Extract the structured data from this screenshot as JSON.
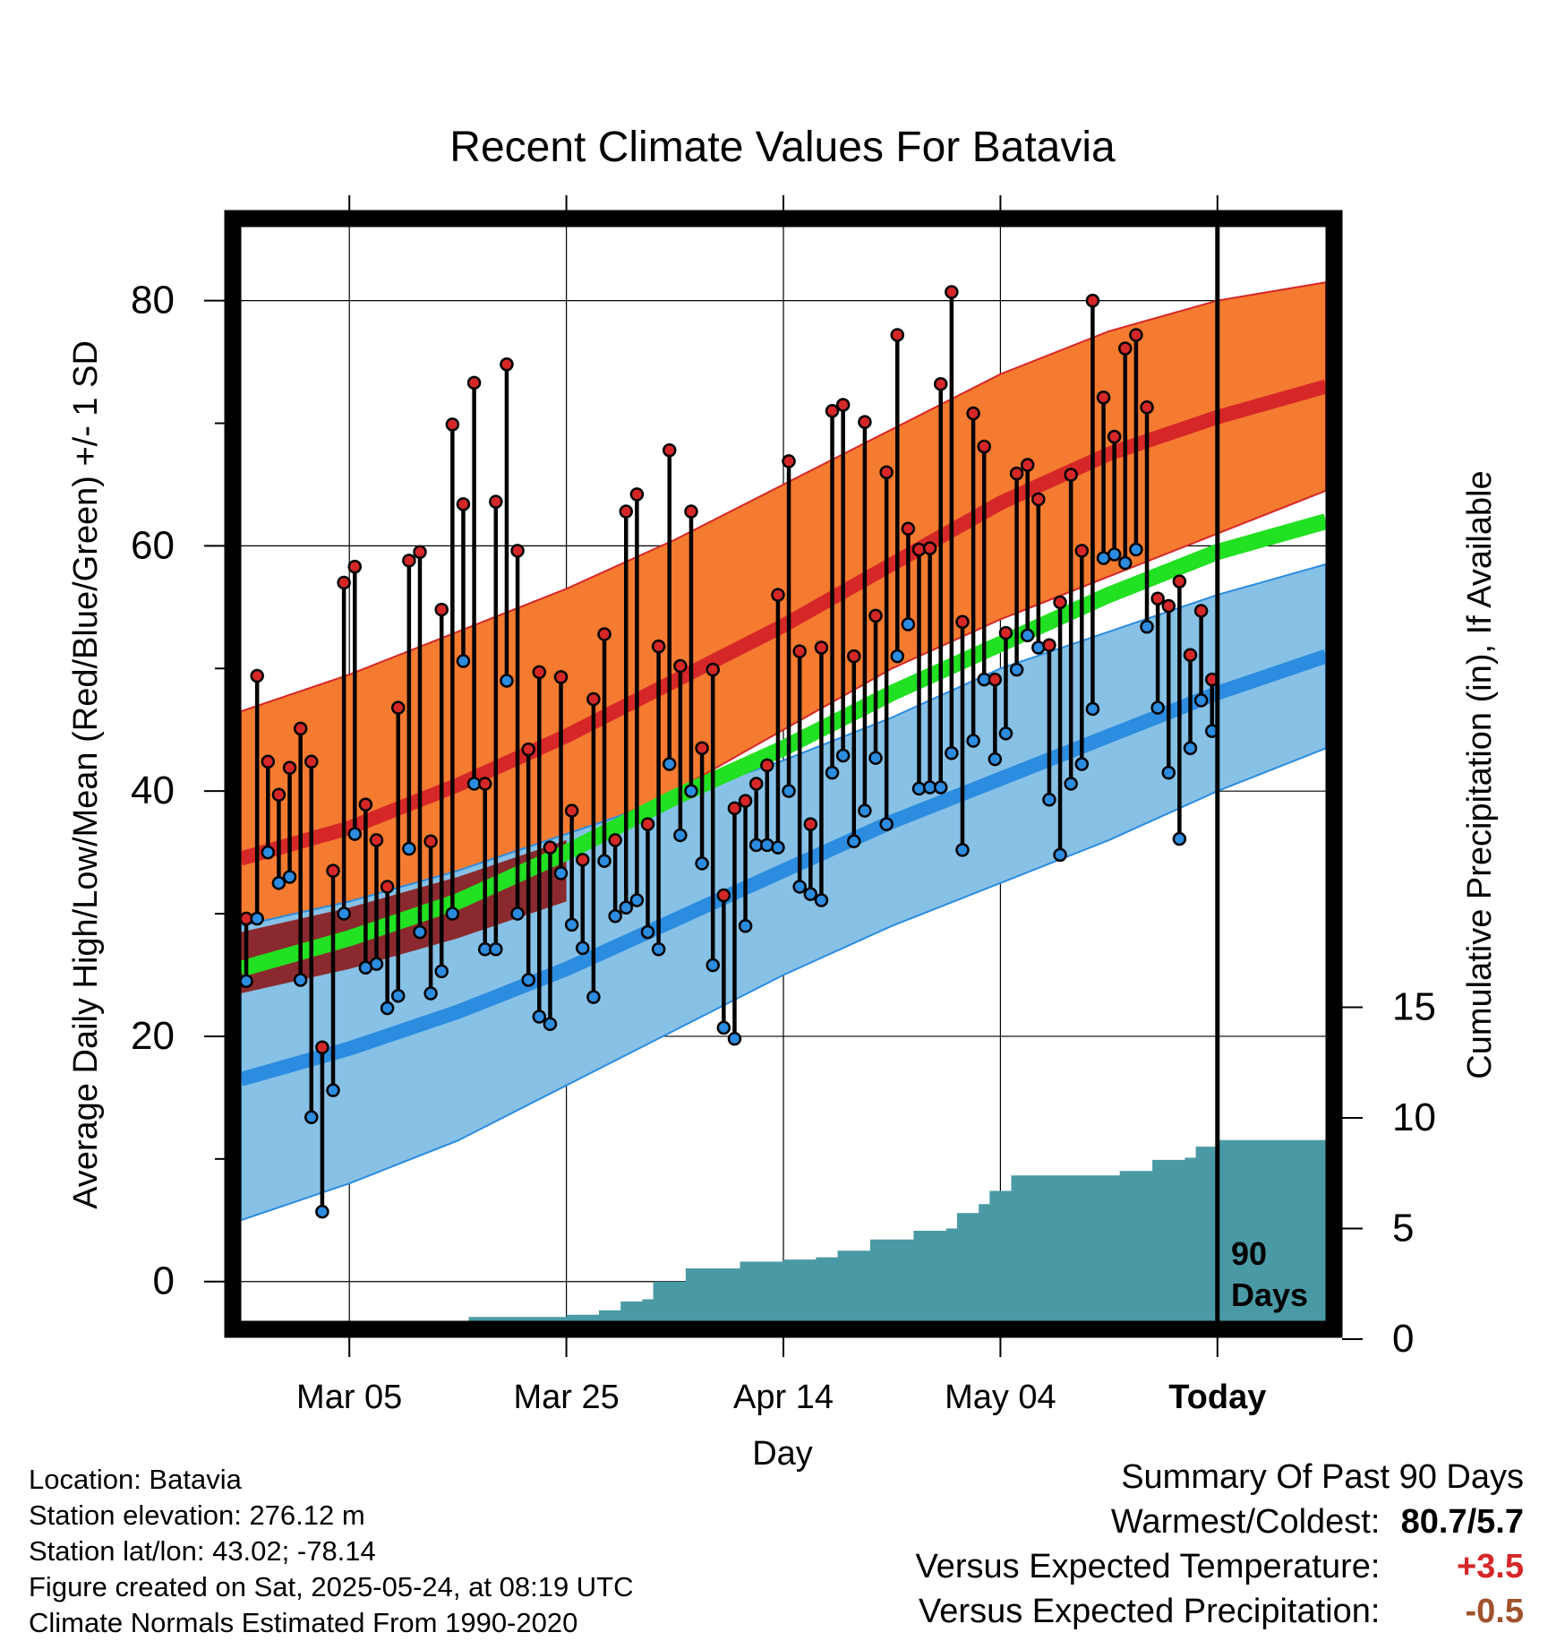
{
  "chart_data": {
    "type": "line",
    "title": "Recent Climate Values For Batavia",
    "xlabel": "Day",
    "ylabel": "Average Daily High/Low/Mean (Red/Blue/Green) +/- 1 SD",
    "y2label": "Cumulative Precipitation (in), If Available",
    "ylim": [
      -3.6,
      86.4
    ],
    "y2lim": [
      0,
      19
    ],
    "yticks": [
      0,
      20,
      40,
      60,
      80
    ],
    "y2ticks": [
      0,
      5,
      10,
      15
    ],
    "x_start": "2025-02-23",
    "x_end": "2025-06-03",
    "xticks": [
      {
        "date": "2025-03-05",
        "label": "Mar 05"
      },
      {
        "date": "2025-03-25",
        "label": "Mar 25"
      },
      {
        "date": "2025-04-14",
        "label": "Apr 14"
      },
      {
        "date": "2025-05-04",
        "label": "May 04"
      },
      {
        "date": "2025-05-24",
        "label": "Today"
      }
    ],
    "today": "2025-05-24",
    "today_label": "90 Days",
    "grid": true,
    "normals": {
      "dates": [
        "2025-02-23",
        "2025-03-05",
        "2025-03-15",
        "2025-03-25",
        "2025-04-04",
        "2025-04-14",
        "2025-04-24",
        "2025-05-04",
        "2025-05-14",
        "2025-05-24",
        "2025-06-03"
      ],
      "high_mean": [
        34.5,
        37.0,
        40.5,
        44.5,
        49.0,
        53.5,
        58.5,
        63.5,
        67.5,
        70.5,
        73.0
      ],
      "high_upper": [
        46.5,
        49.5,
        53.0,
        56.5,
        60.5,
        65.0,
        69.5,
        74.0,
        77.5,
        80.0,
        81.5
      ],
      "high_lower": [
        28.5,
        30.5,
        33.0,
        36.0,
        40.0,
        45.0,
        50.0,
        54.0,
        57.5,
        61.0,
        64.5
      ],
      "low_mean": [
        16.5,
        19.0,
        22.0,
        25.5,
        29.5,
        33.5,
        37.5,
        41.0,
        44.5,
        48.0,
        51.0
      ],
      "low_upper": [
        29.0,
        31.0,
        33.5,
        36.5,
        39.5,
        42.5,
        46.0,
        50.0,
        53.0,
        56.0,
        58.5
      ],
      "low_lower": [
        5.0,
        8.0,
        11.5,
        16.0,
        20.5,
        25.0,
        29.0,
        32.5,
        36.0,
        40.0,
        43.5
      ],
      "mean": [
        25.5,
        28.0,
        31.0,
        35.0,
        39.5,
        43.5,
        48.0,
        52.0,
        56.0,
        59.5,
        62.0
      ]
    },
    "series": [
      {
        "name": "High",
        "color": "#d62728",
        "values": [
          29.6,
          49.4,
          42.4,
          39.7,
          41.9,
          45.1,
          42.4,
          19.1,
          33.5,
          57.0,
          58.3,
          38.9,
          36.0,
          32.2,
          46.8,
          58.8,
          59.5,
          35.9,
          54.8,
          69.9,
          63.4,
          73.3,
          40.6,
          63.6,
          74.8,
          59.6,
          43.4,
          49.7,
          35.4,
          49.3,
          38.4,
          34.4,
          47.5,
          52.8,
          36.0,
          62.8,
          64.2,
          37.3,
          51.8,
          67.8,
          50.2,
          62.8,
          43.5,
          49.9,
          31.5,
          38.6,
          39.2,
          40.6,
          42.1,
          56.0,
          66.9,
          51.4,
          37.3,
          51.7,
          71.0,
          71.5,
          51.0,
          70.1,
          54.3,
          66.0,
          77.2,
          61.4,
          59.7,
          59.8,
          73.2,
          80.7,
          53.8,
          70.8,
          68.1,
          49.1,
          52.9,
          65.9,
          66.6,
          63.8,
          51.9,
          55.4,
          65.8,
          59.6,
          80.0,
          72.1,
          68.9,
          76.1,
          77.2,
          71.3,
          55.7,
          55.1,
          57.1,
          51.1,
          54.7,
          49.1
        ]
      },
      {
        "name": "Low",
        "color": "#2b8ce0",
        "values": [
          24.5,
          29.6,
          35.0,
          32.5,
          33.0,
          24.6,
          13.4,
          5.7,
          15.6,
          30.0,
          36.5,
          25.6,
          25.9,
          22.3,
          23.3,
          35.3,
          28.5,
          23.5,
          25.3,
          30.0,
          50.6,
          40.6,
          27.1,
          27.1,
          49.0,
          30.0,
          24.6,
          21.6,
          21.0,
          33.3,
          29.1,
          27.2,
          23.2,
          34.3,
          29.8,
          30.5,
          31.1,
          28.5,
          27.1,
          42.2,
          36.4,
          40.0,
          34.1,
          25.8,
          20.7,
          19.8,
          29.0,
          35.6,
          35.6,
          35.4,
          40.0,
          32.2,
          31.6,
          31.1,
          41.5,
          42.9,
          35.9,
          38.4,
          42.7,
          37.3,
          51.0,
          53.6,
          40.2,
          40.3,
          40.3,
          43.1,
          35.2,
          44.1,
          49.1,
          42.6,
          44.7,
          49.9,
          52.7,
          51.7,
          39.3,
          34.8,
          40.6,
          42.2,
          46.7,
          59.0,
          59.3,
          58.6,
          59.7,
          53.4,
          46.8,
          41.5,
          36.1,
          43.5,
          47.4,
          44.9
        ]
      }
    ],
    "precip": {
      "dates": [
        "2025-02-23",
        "2025-03-05",
        "2025-03-15",
        "2025-03-16",
        "2025-03-25",
        "2025-03-28",
        "2025-03-30",
        "2025-04-01",
        "2025-04-02",
        "2025-04-05",
        "2025-04-10",
        "2025-04-14",
        "2025-04-17",
        "2025-04-19",
        "2025-04-22",
        "2025-04-26",
        "2025-04-29",
        "2025-04-30",
        "2025-05-02",
        "2025-05-03",
        "2025-05-05",
        "2025-05-15",
        "2025-05-18",
        "2025-05-21",
        "2025-05-22",
        "2025-05-24",
        "2025-06-03"
      ],
      "values": [
        0.0,
        0.5,
        0.5,
        1.0,
        1.1,
        1.3,
        1.7,
        1.8,
        2.6,
        3.2,
        3.5,
        3.6,
        3.7,
        4.0,
        4.5,
        4.9,
        5.0,
        5.7,
        6.1,
        6.7,
        7.4,
        7.6,
        8.1,
        8.2,
        8.7,
        9.0,
        9.0
      ]
    }
  },
  "footer": {
    "location": "Location: Batavia",
    "elevation": "Station elevation: 276.12 m",
    "latlon": "Station lat/lon: 43.02; -78.14",
    "created": "Figure created on Sat, 2025-05-24, at 08:19 UTC",
    "normals": "Climate Normals Estimated From 1990-2020"
  },
  "summary": {
    "title": "Summary Of Past 90 Days",
    "warm_cold_label": "Warmest/Coldest:",
    "warm_cold_value": "80.7/5.7",
    "temp_label": "Versus Expected Temperature:",
    "temp_value": "+3.5",
    "temp_color": "#d62728",
    "precip_label": "Versus Expected Precipitation:",
    "precip_value": "-0.5",
    "precip_color": "#a0522d"
  },
  "colors": {
    "high_band": "#f47b30",
    "high_mean": "#d62728",
    "low_band": "#87c1e6",
    "low_mean": "#2b8ce0",
    "mean": "#22e022",
    "overlap_band": "#8b1a1a",
    "precip": "#4a9aa5"
  }
}
